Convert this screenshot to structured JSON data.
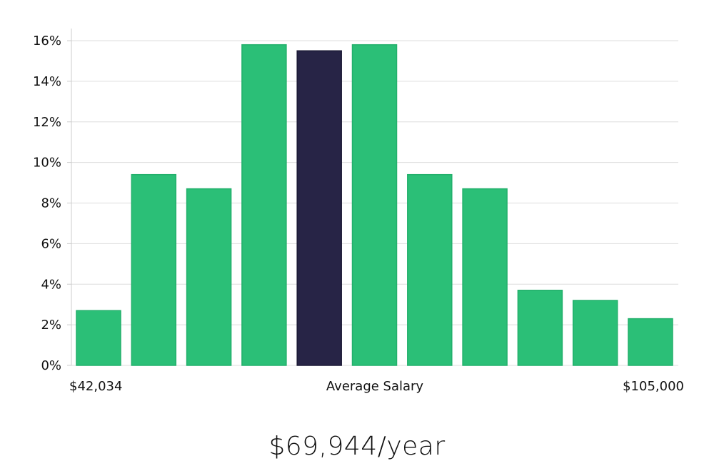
{
  "chart_data": {
    "type": "bar",
    "values": [
      2.7,
      9.4,
      8.7,
      15.8,
      15.5,
      15.8,
      9.4,
      8.7,
      3.7,
      3.2,
      2.3
    ],
    "highlight_index": 4,
    "ylim": [
      0,
      16
    ],
    "y_ticks": [
      0,
      2,
      4,
      6,
      8,
      10,
      12,
      14,
      16
    ],
    "y_tick_format": "{v}%",
    "grid": true,
    "x_labels": {
      "left": "$42,034",
      "center": "Average Salary",
      "right": "$105,000"
    },
    "colors": {
      "bar": "#2bbf77",
      "bar_edge": "#22b06b",
      "highlight": "#272446",
      "grid": "#dddddd",
      "axis": "#cccccc"
    }
  },
  "salary_text": "$69,944/year"
}
